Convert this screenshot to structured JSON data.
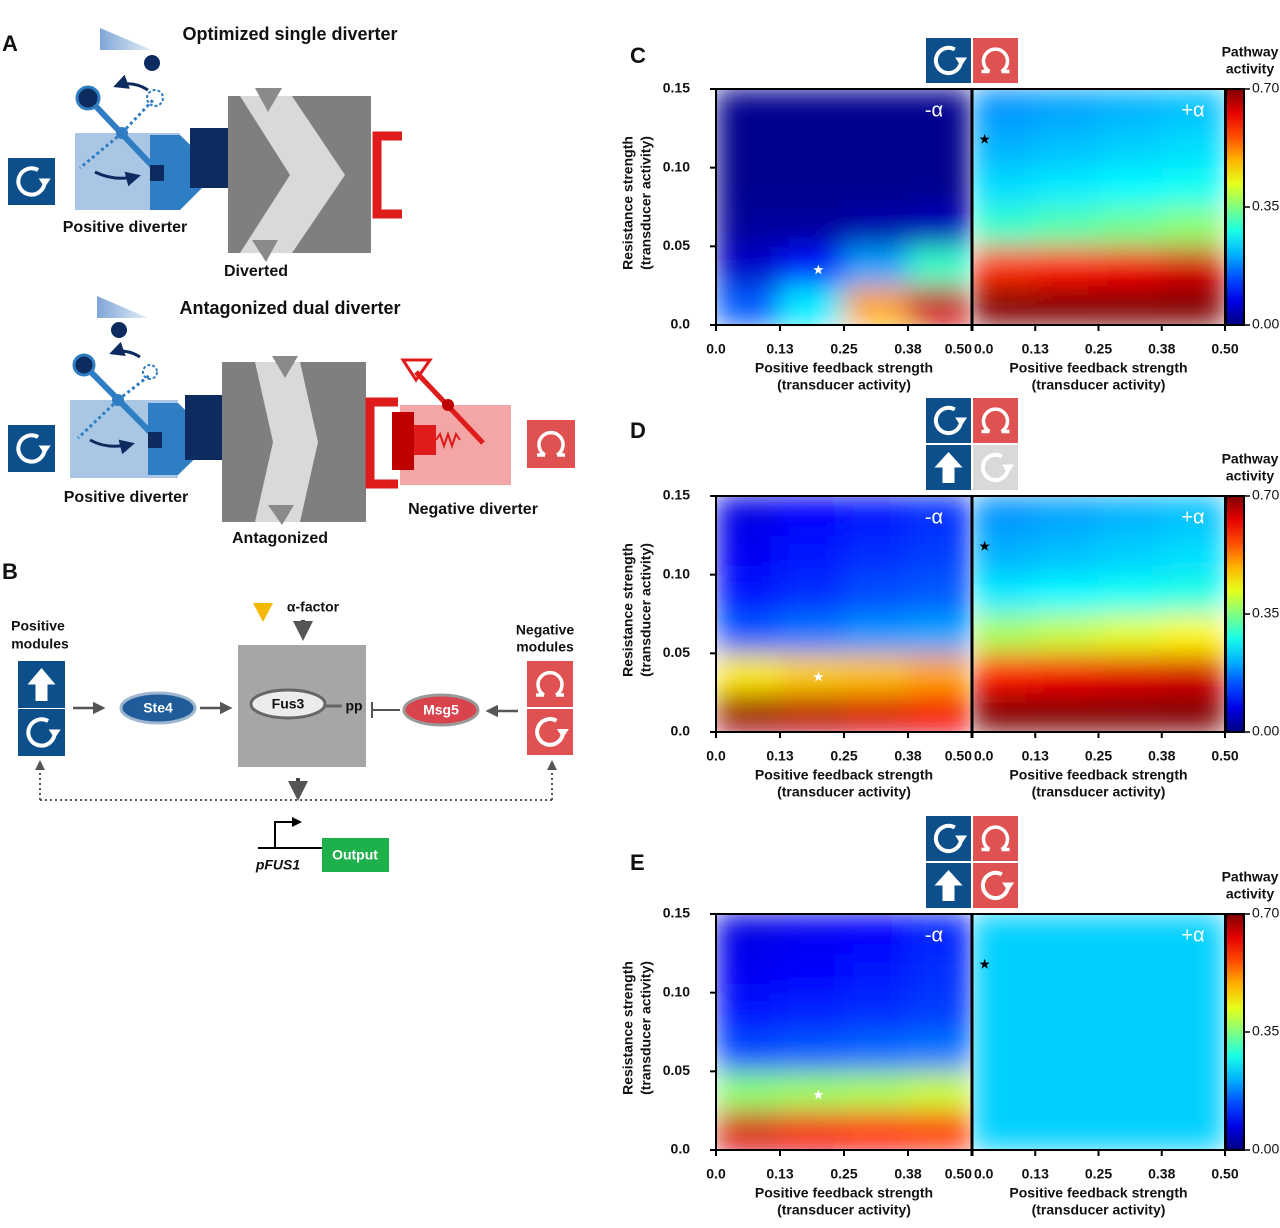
{
  "panel_a": {
    "label": "A",
    "top": {
      "title": "Optimized single diverter",
      "positive": "Positive diverter",
      "core": "Diverted"
    },
    "bottom": {
      "title": "Antagonized dual diverter",
      "positive": "Positive diverter",
      "core": "Antagonized",
      "negative": "Negative diverter"
    }
  },
  "panel_b": {
    "label": "B",
    "positive_modules": [
      "Positive",
      "modules"
    ],
    "negative_modules": [
      "Negative",
      "modules"
    ],
    "stimulus": "α-factor",
    "ste4": "Ste4",
    "fus3": "Fus3",
    "phospho": "pp",
    "msg5": "Msg5",
    "promoter": "pFUS1",
    "output": "Output"
  },
  "chart_data": [
    {
      "type": "heatmap",
      "panel_label": "C",
      "ylabel": [
        "Resistance strength",
        "(transducer  activity)"
      ],
      "xlabel": [
        "Positive feedback  strength",
        "(transducer activity)"
      ],
      "colorbar_label": [
        "Pathway",
        "activity"
      ],
      "clim": [
        0,
        0.7
      ],
      "cticks": [
        {
          "value": 0,
          "label": "0.00"
        },
        0.35,
        {
          "value": 0.7,
          "label": "0.70"
        }
      ],
      "xlim": [
        0,
        0.5
      ],
      "xticks": [
        {
          "value": 0,
          "label": "0.0"
        },
        {
          "value": 0.125,
          "label": "0.13"
        },
        0.25,
        {
          "value": 0.375,
          "label": "0.38"
        },
        {
          "value": 0.5,
          "label": "0.50"
        }
      ],
      "ylim": [
        0,
        0.15
      ],
      "yticks": [
        {
          "value": 0,
          "label": "0.0"
        },
        0.05,
        {
          "value": 0.1,
          "label": "0.10"
        },
        0.15
      ],
      "x": [
        0.0625,
        0.1875,
        0.3125,
        0.4375
      ],
      "y": [
        0.0125,
        0.0375,
        0.0625,
        0.0875,
        0.1125,
        0.1375
      ],
      "subplots": [
        {
          "label": "-α",
          "z": [
            [
              0.15,
              0.25,
              0.5,
              0.65
            ],
            [
              0.05,
              0.1,
              0.2,
              0.3
            ],
            [
              0.02,
              0.02,
              0.03,
              0.04
            ],
            [
              0.01,
              0.01,
              0.01,
              0.01
            ],
            [
              0.01,
              0.01,
              0.01,
              0.01
            ],
            [
              0.01,
              0.01,
              0.01,
              0.01
            ]
          ],
          "marker": {
            "x": 0.2,
            "y": 0.035,
            "color": "#ffffff"
          }
        },
        {
          "label": "+α",
          "z": [
            [
              0.7,
              0.7,
              0.7,
              0.7
            ],
            [
              0.58,
              0.6,
              0.62,
              0.64
            ],
            [
              0.3,
              0.32,
              0.34,
              0.36
            ],
            [
              0.24,
              0.25,
              0.26,
              0.27
            ],
            [
              0.21,
              0.22,
              0.23,
              0.24
            ],
            [
              0.19,
              0.2,
              0.21,
              0.22
            ]
          ],
          "marker": {
            "x": 0.025,
            "y": 0.118,
            "color": "#000000"
          }
        }
      ]
    },
    {
      "type": "heatmap",
      "panel_label": "D",
      "ylabel": [
        "Resistance strength",
        "(transducer  activity)"
      ],
      "xlabel": [
        "Positive feedback  strength",
        "(transducer activity)"
      ],
      "colorbar_label": [
        "Pathway",
        "activity"
      ],
      "clim": [
        0,
        0.7
      ],
      "cticks": [
        {
          "value": 0,
          "label": "0.00"
        },
        0.35,
        {
          "value": 0.7,
          "label": "0.70"
        }
      ],
      "xlim": [
        0,
        0.5
      ],
      "xticks": [
        {
          "value": 0,
          "label": "0.0"
        },
        {
          "value": 0.125,
          "label": "0.13"
        },
        0.25,
        {
          "value": 0.375,
          "label": "0.38"
        },
        {
          "value": 0.5,
          "label": "0.50"
        }
      ],
      "ylim": [
        0,
        0.15
      ],
      "yticks": [
        {
          "value": 0,
          "label": "0.0"
        },
        0.05,
        {
          "value": 0.1,
          "label": "0.10"
        },
        0.15
      ],
      "x": [
        0.0625,
        0.1875,
        0.3125,
        0.4375
      ],
      "y": [
        0.0125,
        0.0375,
        0.0625,
        0.0875,
        0.1125,
        0.1375
      ],
      "subplots": [
        {
          "label": "-α",
          "z": [
            [
              0.68,
              0.66,
              0.64,
              0.62
            ],
            [
              0.45,
              0.47,
              0.48,
              0.5
            ],
            [
              0.15,
              0.17,
              0.19,
              0.2
            ],
            [
              0.1,
              0.12,
              0.14,
              0.15
            ],
            [
              0.08,
              0.1,
              0.12,
              0.13
            ],
            [
              0.07,
              0.09,
              0.1,
              0.12
            ]
          ],
          "marker": {
            "x": 0.2,
            "y": 0.035,
            "color": "#ffffff"
          }
        },
        {
          "label": "+α",
          "z": [
            [
              0.7,
              0.7,
              0.7,
              0.7
            ],
            [
              0.6,
              0.62,
              0.63,
              0.64
            ],
            [
              0.38,
              0.4,
              0.42,
              0.44
            ],
            [
              0.25,
              0.26,
              0.27,
              0.28
            ],
            [
              0.21,
              0.22,
              0.23,
              0.24
            ],
            [
              0.19,
              0.2,
              0.21,
              0.22
            ]
          ],
          "marker": {
            "x": 0.025,
            "y": 0.118,
            "color": "#000000"
          }
        }
      ]
    },
    {
      "type": "heatmap",
      "panel_label": "E",
      "ylabel": [
        "Resistance strength",
        "(transducer  activity)"
      ],
      "xlabel": [
        "Positive feedback  strength",
        "(transducer activity)"
      ],
      "colorbar_label": [
        "Pathway",
        "activity"
      ],
      "clim": [
        0,
        0.7
      ],
      "cticks": [
        {
          "value": 0,
          "label": "0.00"
        },
        0.35,
        {
          "value": 0.7,
          "label": "0.70"
        }
      ],
      "xlim": [
        0,
        0.5
      ],
      "xticks": [
        {
          "value": 0,
          "label": "0.0"
        },
        {
          "value": 0.125,
          "label": "0.13"
        },
        0.25,
        {
          "value": 0.375,
          "label": "0.38"
        },
        {
          "value": 0.5,
          "label": "0.50"
        }
      ],
      "ylim": [
        0,
        0.15
      ],
      "yticks": [
        {
          "value": 0,
          "label": "0.0"
        },
        0.05,
        {
          "value": 0.1,
          "label": "0.10"
        },
        0.15
      ],
      "x": [
        0.0625,
        0.1875,
        0.3125,
        0.4375
      ],
      "y": [
        0.0125,
        0.0375,
        0.0625,
        0.0875,
        0.1125,
        0.1375
      ],
      "subplots": [
        {
          "label": "-α",
          "z": [
            [
              0.64,
              0.62,
              0.6,
              0.58
            ],
            [
              0.36,
              0.37,
              0.38,
              0.4
            ],
            [
              0.14,
              0.15,
              0.16,
              0.17
            ],
            [
              0.1,
              0.11,
              0.12,
              0.13
            ],
            [
              0.08,
              0.09,
              0.1,
              0.12
            ],
            [
              0.07,
              0.08,
              0.09,
              0.11
            ]
          ],
          "marker": {
            "x": 0.2,
            "y": 0.035,
            "color": "#ffffff"
          }
        },
        {
          "label": "+α",
          "z": [
            [
              0.23,
              0.23,
              0.23,
              0.23
            ],
            [
              0.23,
              0.23,
              0.23,
              0.23
            ],
            [
              0.23,
              0.23,
              0.23,
              0.23
            ],
            [
              0.23,
              0.23,
              0.23,
              0.23
            ],
            [
              0.23,
              0.23,
              0.23,
              0.23
            ],
            [
              0.23,
              0.23,
              0.23,
              0.23
            ]
          ],
          "marker": {
            "x": 0.025,
            "y": 0.118,
            "color": "#000000"
          }
        }
      ]
    }
  ]
}
